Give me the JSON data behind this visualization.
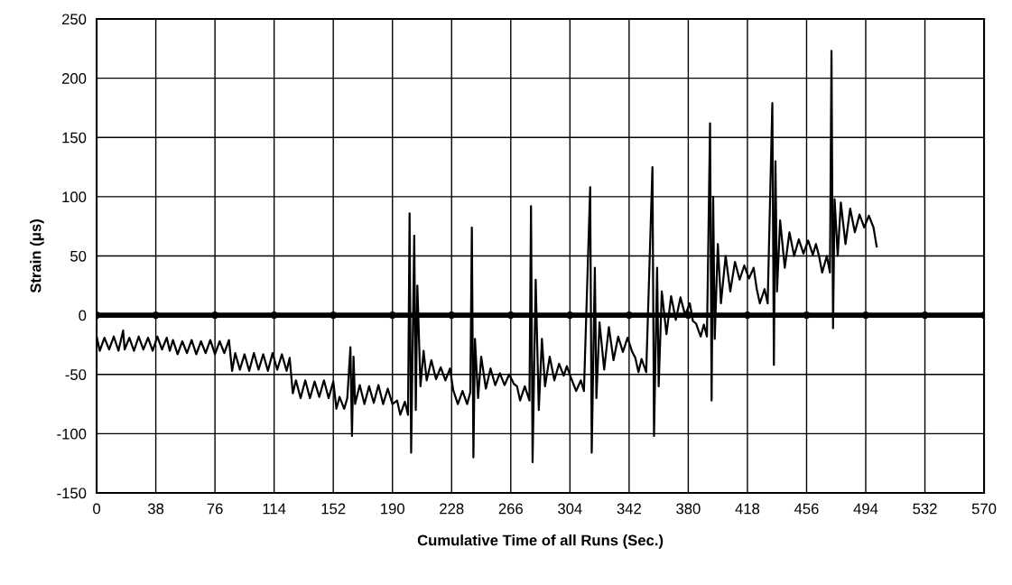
{
  "chart_data": {
    "type": "line",
    "xlabel": "Cumulative Time of all Runs (Sec.)",
    "ylabel": "Strain (μs)",
    "xlim": [
      0,
      570
    ],
    "xticks": [
      0,
      38,
      76,
      114,
      152,
      190,
      228,
      266,
      304,
      342,
      380,
      418,
      456,
      494,
      532,
      570
    ],
    "ylim": [
      -150,
      250
    ],
    "yticks": [
      -150,
      -100,
      -50,
      0,
      50,
      100,
      150,
      200,
      250
    ],
    "grid": true,
    "series": [
      {
        "color": "#000000",
        "marker": "none",
        "x": [
          0,
          2,
          5,
          8,
          11,
          14,
          17,
          18,
          21,
          24,
          27,
          30,
          33,
          36,
          39,
          42,
          45,
          47,
          49,
          52,
          55,
          58,
          61,
          64,
          67,
          70,
          73,
          76,
          79,
          82,
          85,
          87,
          89,
          92,
          95,
          98,
          101,
          104,
          107,
          110,
          113,
          116,
          119,
          122,
          124,
          126,
          128,
          131,
          134,
          137,
          140,
          143,
          146,
          149,
          152,
          154,
          156,
          159,
          161,
          163,
          164,
          165,
          166,
          169,
          172,
          175,
          178,
          181,
          184,
          187,
          190,
          193,
          195,
          198,
          200,
          201,
          202,
          204,
          205,
          206,
          208,
          210,
          212,
          215,
          218,
          221,
          224,
          227,
          229,
          232,
          235,
          238,
          240,
          241,
          242,
          243,
          245,
          247,
          250,
          253,
          256,
          259,
          262,
          265,
          268,
          270,
          272,
          275,
          278,
          279,
          280,
          282,
          284,
          286,
          288,
          291,
          294,
          297,
          300,
          302,
          305,
          308,
          311,
          313,
          317,
          318,
          320,
          321,
          323,
          326,
          329,
          332,
          335,
          338,
          341,
          344,
          346,
          348,
          350,
          353,
          357,
          358,
          360,
          361,
          363,
          366,
          369,
          372,
          375,
          378,
          381,
          383,
          385,
          388,
          390,
          392,
          394,
          395,
          396,
          397,
          399,
          401,
          404,
          407,
          410,
          413,
          416,
          419,
          422,
          424,
          426,
          429,
          431,
          434,
          435,
          436,
          437,
          439,
          442,
          445,
          448,
          451,
          454,
          457,
          460,
          462,
          464,
          466,
          469,
          471,
          472,
          473,
          474,
          476,
          478,
          481,
          484,
          487,
          490,
          493,
          496,
          499,
          501
        ],
        "values": [
          -18,
          -30,
          -19,
          -29,
          -18,
          -30,
          -13,
          -29,
          -19,
          -30,
          -18,
          -29,
          -19,
          -30,
          -18,
          -29,
          -19,
          -30,
          -21,
          -33,
          -22,
          -32,
          -21,
          -33,
          -22,
          -32,
          -21,
          -33,
          -22,
          -32,
          -21,
          -47,
          -32,
          -46,
          -33,
          -47,
          -32,
          -46,
          -33,
          -47,
          -32,
          -46,
          -33,
          -47,
          -36,
          -66,
          -55,
          -70,
          -55,
          -70,
          -56,
          -69,
          -55,
          -70,
          -56,
          -79,
          -69,
          -79,
          -70,
          -27,
          -102,
          -35,
          -75,
          -59,
          -75,
          -60,
          -74,
          -59,
          -75,
          -62,
          -75,
          -72,
          -84,
          -73,
          -84,
          86,
          -116,
          67,
          -80,
          25,
          -60,
          -30,
          -55,
          -38,
          -54,
          -44,
          -55,
          -45,
          -63,
          -75,
          -64,
          -75,
          -65,
          74,
          -120,
          -20,
          -70,
          -35,
          -62,
          -45,
          -59,
          -49,
          -59,
          -50,
          -58,
          -60,
          -72,
          -60,
          -72,
          92,
          -124,
          30,
          -80,
          -20,
          -60,
          -35,
          -55,
          -41,
          -51,
          -43,
          -54,
          -64,
          -55,
          -64,
          108,
          -116,
          40,
          -70,
          -6,
          -46,
          -10,
          -38,
          -18,
          -31,
          -19,
          -31,
          -36,
          -48,
          -37,
          -48,
          125,
          -102,
          40,
          -60,
          20,
          -16,
          16,
          -4,
          15,
          0,
          10,
          -5,
          -7,
          -18,
          -8,
          -18,
          162,
          -72,
          100,
          -20,
          60,
          10,
          50,
          20,
          45,
          30,
          42,
          31,
          40,
          22,
          10,
          22,
          10,
          179,
          -42,
          130,
          20,
          80,
          40,
          70,
          50,
          64,
          52,
          63,
          51,
          60,
          50,
          36,
          50,
          36,
          223,
          -11,
          98,
          50,
          95,
          60,
          90,
          70,
          85,
          74,
          84,
          74,
          58
        ]
      },
      {
        "color": "#000000",
        "marker": "circle",
        "x": [
          0,
          38,
          76,
          114,
          152,
          190,
          228,
          266,
          304,
          342,
          380,
          418,
          456,
          494,
          532,
          570
        ],
        "values": [
          0,
          0,
          0,
          0,
          0,
          0,
          0,
          0,
          0,
          0,
          0,
          0,
          0,
          0,
          0,
          0
        ]
      }
    ]
  }
}
